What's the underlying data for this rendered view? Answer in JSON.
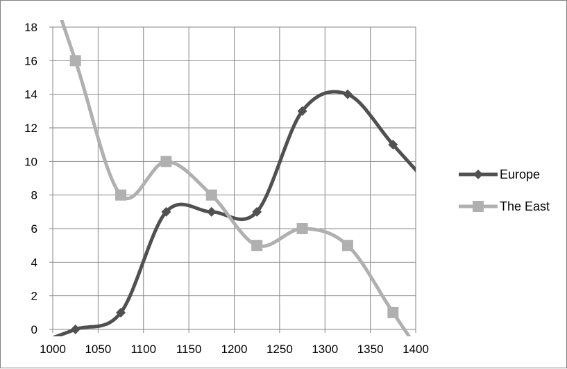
{
  "chart_data": {
    "type": "line",
    "smooth": true,
    "x": [
      1025,
      1075,
      1125,
      1175,
      1225,
      1275,
      1325,
      1375
    ],
    "xlim": [
      1000,
      1400
    ],
    "ylim": [
      0,
      18
    ],
    "x_ticks": [
      1000,
      1050,
      1100,
      1150,
      1200,
      1250,
      1300,
      1350,
      1400
    ],
    "y_ticks": [
      0,
      2,
      4,
      6,
      8,
      10,
      12,
      14,
      16,
      18
    ],
    "grid": true,
    "legend_position": "right",
    "series": [
      {
        "name": "Europe",
        "values": [
          0,
          1,
          7,
          7,
          7,
          13,
          14,
          11
        ],
        "color": "#505050",
        "marker": "diamond"
      },
      {
        "name": "The East",
        "values": [
          16,
          8,
          10,
          8,
          5,
          6,
          5,
          1
        ],
        "color": "#b0b0b0",
        "marker": "square"
      }
    ]
  }
}
